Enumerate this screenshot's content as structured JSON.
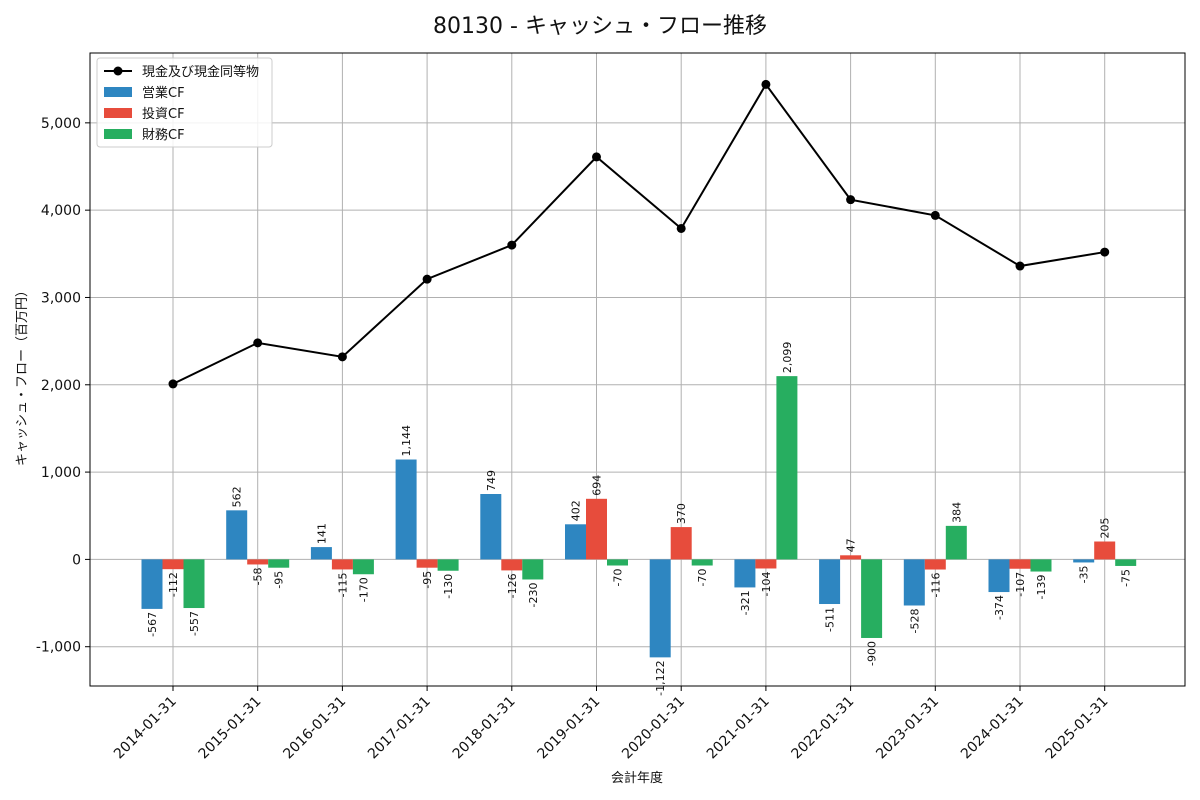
{
  "chart_data": {
    "type": "bar",
    "title": "80130 - キャッシュ・フロー推移",
    "xlabel": "会計年度",
    "ylabel": "キャッシュ・フロー（百万円）",
    "ylim": [
      -1450,
      5800
    ],
    "yticks": [
      -1000,
      0,
      1000,
      2000,
      3000,
      4000,
      5000
    ],
    "ytick_labels": [
      "-1,000",
      "0",
      "1,000",
      "2,000",
      "3,000",
      "4,000",
      "5,000"
    ],
    "grid": true,
    "legend_position": "top-left",
    "categories": [
      "2014-01-31",
      "2015-01-31",
      "2016-01-31",
      "2017-01-31",
      "2018-01-31",
      "2019-01-31",
      "2020-01-31",
      "2021-01-31",
      "2022-01-31",
      "2023-01-31",
      "2024-01-31",
      "2025-01-31"
    ],
    "series": [
      {
        "name": "営業CF",
        "kind": "bar",
        "color": "#2e86c1",
        "values": [
          -567,
          562,
          141,
          1144,
          749,
          402,
          -1122,
          -321,
          -511,
          -528,
          -374,
          -35
        ],
        "labels": [
          "-567",
          "562",
          "141",
          "1,144",
          "749",
          "402",
          "-1,122",
          "-321",
          "-511",
          "-528",
          "-374",
          "-35"
        ]
      },
      {
        "name": "投資CF",
        "kind": "bar",
        "color": "#e74c3c",
        "values": [
          -112,
          -58,
          -115,
          -95,
          -126,
          694,
          370,
          -104,
          47,
          -116,
          -107,
          205
        ],
        "labels": [
          "-112",
          "-58",
          "-115",
          "-95",
          "-126",
          "694",
          "370",
          "-104",
          "47",
          "-116",
          "-107",
          "205"
        ]
      },
      {
        "name": "財務CF",
        "kind": "bar",
        "color": "#27ae60",
        "values": [
          -557,
          -95,
          -170,
          -130,
          -230,
          -70,
          -70,
          2099,
          -900,
          384,
          -139,
          -75
        ],
        "labels": [
          "-557",
          "-95",
          "-170",
          "-130",
          "-230",
          "-70",
          "-70",
          "2,099",
          "-900",
          "384",
          "-139",
          "-75"
        ]
      },
      {
        "name": "現金及び現金同等物",
        "kind": "line",
        "color": "#000000",
        "values": [
          2010,
          2480,
          2320,
          3210,
          3600,
          4610,
          3790,
          5440,
          4120,
          3940,
          3360,
          3520
        ]
      }
    ]
  }
}
